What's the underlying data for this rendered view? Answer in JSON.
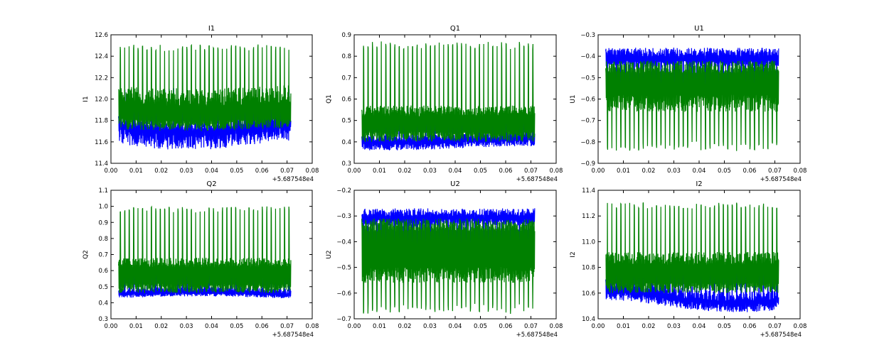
{
  "chart_data": [
    {
      "type": "line",
      "title": "I1",
      "ylabel": "I1",
      "xlabel": "",
      "x_offset_label": "+5.687548e4",
      "xlim": [
        0.0,
        0.08
      ],
      "ylim": [
        11.4,
        12.6
      ],
      "x_ticks": [
        "0.00",
        "0.01",
        "0.02",
        "0.03",
        "0.04",
        "0.05",
        "0.06",
        "0.07",
        "0.08"
      ],
      "y_ticks": [
        "11.4",
        "11.6",
        "11.8",
        "12.0",
        "12.2",
        "12.4",
        "12.6"
      ],
      "grid": false,
      "x_range": [
        0.003,
        0.0715
      ],
      "series": [
        {
          "color": "#0000ff",
          "band_low": [
            11.58,
            11.72
          ],
          "band_high": [
            11.76,
            11.84
          ],
          "spike_to": 12.08,
          "trend": -0.06
        },
        {
          "color": "#008000",
          "band_low": [
            11.72,
            11.82
          ],
          "band_high": [
            11.95,
            12.12
          ],
          "spike_to": 12.48,
          "trend": -0.02
        }
      ]
    },
    {
      "type": "line",
      "title": "Q1",
      "ylabel": "Q1",
      "xlabel": "",
      "x_offset_label": "+5.687548e4",
      "xlim": [
        0.0,
        0.08
      ],
      "ylim": [
        0.3,
        0.9
      ],
      "x_ticks": [
        "0.00",
        "0.01",
        "0.02",
        "0.03",
        "0.04",
        "0.05",
        "0.06",
        "0.07",
        "0.08"
      ],
      "y_ticks": [
        "0.3",
        "0.4",
        "0.5",
        "0.6",
        "0.7",
        "0.8",
        "0.9"
      ],
      "grid": false,
      "x_range": [
        0.003,
        0.0715
      ],
      "series": [
        {
          "color": "#0000ff",
          "band_low": [
            0.37,
            0.4
          ],
          "band_high": [
            0.41,
            0.44
          ],
          "spike_to": 0.55,
          "trend": -0.01
        },
        {
          "color": "#008000",
          "band_low": [
            0.4,
            0.45
          ],
          "band_high": [
            0.52,
            0.57
          ],
          "spike_to": 0.85,
          "trend": 0.0
        }
      ]
    },
    {
      "type": "line",
      "title": "U1",
      "ylabel": "U1",
      "xlabel": "",
      "x_offset_label": "+5.687548e4",
      "xlim": [
        0.0,
        0.08
      ],
      "ylim": [
        -0.9,
        -0.3
      ],
      "x_ticks": [
        "0.00",
        "0.01",
        "0.02",
        "0.03",
        "0.04",
        "0.05",
        "0.06",
        "0.07",
        "0.08"
      ],
      "y_ticks": [
        "-0.9",
        "-0.8",
        "-0.7",
        "-0.6",
        "-0.5",
        "-0.4",
        "-0.3"
      ],
      "grid": false,
      "x_range": [
        0.003,
        0.0715
      ],
      "series": [
        {
          "color": "#0000ff",
          "band_low": [
            -0.45,
            -0.42
          ],
          "band_high": [
            -0.4,
            -0.36
          ],
          "spike_to": -0.55,
          "trend": 0.0
        },
        {
          "color": "#008000",
          "band_low": [
            -0.66,
            -0.58
          ],
          "band_high": [
            -0.48,
            -0.42
          ],
          "spike_to": -0.82,
          "trend": 0.0
        }
      ]
    },
    {
      "type": "line",
      "title": "Q2",
      "ylabel": "Q2",
      "xlabel": "",
      "x_offset_label": "+5.687548e4",
      "xlim": [
        0.0,
        0.08
      ],
      "ylim": [
        0.3,
        1.1
      ],
      "x_ticks": [
        "0.00",
        "0.01",
        "0.02",
        "0.03",
        "0.04",
        "0.05",
        "0.06",
        "0.07",
        "0.08"
      ],
      "y_ticks": [
        "0.3",
        "0.4",
        "0.5",
        "0.6",
        "0.7",
        "0.8",
        "0.9",
        "1.0",
        "1.1"
      ],
      "grid": false,
      "x_range": [
        0.003,
        0.0715
      ],
      "series": [
        {
          "color": "#0000ff",
          "band_low": [
            0.43,
            0.45
          ],
          "band_high": [
            0.46,
            0.49
          ],
          "spike_to": 0.6,
          "trend": -0.01
        },
        {
          "color": "#008000",
          "band_low": [
            0.46,
            0.52
          ],
          "band_high": [
            0.62,
            0.68
          ],
          "spike_to": 0.98,
          "trend": 0.0
        }
      ]
    },
    {
      "type": "line",
      "title": "U2",
      "ylabel": "U2",
      "xlabel": "",
      "x_offset_label": "+5.687548e4",
      "xlim": [
        0.0,
        0.08
      ],
      "ylim": [
        -0.7,
        -0.2
      ],
      "x_ticks": [
        "0.00",
        "0.01",
        "0.02",
        "0.03",
        "0.04",
        "0.05",
        "0.06",
        "0.07",
        "0.08"
      ],
      "y_ticks": [
        "-0.7",
        "-0.6",
        "-0.5",
        "-0.4",
        "-0.3",
        "-0.2"
      ],
      "grid": false,
      "x_range": [
        0.003,
        0.0715
      ],
      "series": [
        {
          "color": "#0000ff",
          "band_low": [
            -0.34,
            -0.31
          ],
          "band_high": [
            -0.3,
            -0.27
          ],
          "spike_to": -0.44,
          "trend": 0.0
        },
        {
          "color": "#008000",
          "band_low": [
            -0.56,
            -0.5
          ],
          "band_high": [
            -0.36,
            -0.31
          ],
          "spike_to": -0.66,
          "trend": 0.0
        }
      ]
    },
    {
      "type": "line",
      "title": "I2",
      "ylabel": "I2",
      "xlabel": "",
      "x_offset_label": "+5.687548e4",
      "xlim": [
        0.0,
        0.08
      ],
      "ylim": [
        10.4,
        11.4
      ],
      "x_ticks": [
        "0.00",
        "0.01",
        "0.02",
        "0.03",
        "0.04",
        "0.05",
        "0.06",
        "0.07",
        "0.08"
      ],
      "y_ticks": [
        "10.4",
        "10.6",
        "10.8",
        "11.0",
        "11.2",
        "11.4"
      ],
      "grid": false,
      "x_range": [
        0.003,
        0.0715
      ],
      "series": [
        {
          "color": "#0000ff",
          "band_low": [
            10.5,
            10.56
          ],
          "band_high": [
            10.58,
            10.66
          ],
          "spike_to": 10.8,
          "trend": -0.05
        },
        {
          "color": "#008000",
          "band_low": [
            10.6,
            10.68
          ],
          "band_high": [
            10.82,
            10.92
          ],
          "spike_to": 11.28,
          "trend": 0.0
        }
      ]
    }
  ]
}
